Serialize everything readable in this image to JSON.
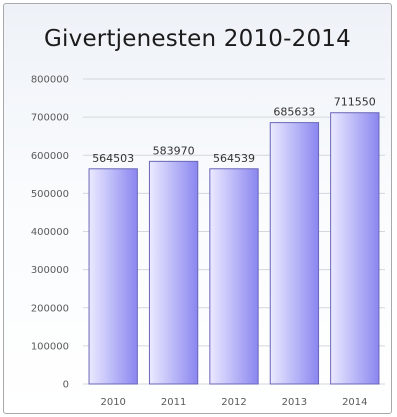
{
  "chart_data": {
    "type": "bar",
    "title": "Givertjenesten 2010-2014",
    "categories": [
      "2010",
      "2011",
      "2012",
      "2013",
      "2014"
    ],
    "values": [
      564503,
      583970,
      564539,
      685633,
      711550
    ],
    "data_labels": [
      "564503",
      "583970",
      "564539",
      "685633",
      "711550"
    ],
    "yticks": [
      0,
      100000,
      200000,
      300000,
      400000,
      500000,
      600000,
      700000,
      800000
    ],
    "ytick_labels": [
      "0",
      "100000",
      "200000",
      "300000",
      "400000",
      "500000",
      "600000",
      "700000",
      "800000"
    ],
    "ylim": [
      0,
      800000
    ],
    "xlabel": "",
    "ylabel": "",
    "grid": true,
    "legend": "none",
    "colors": {
      "bar_light": "#ebeaff",
      "bar_dark": "#8a86f0",
      "bar_border": "#6a67b8",
      "grid": "#d3d7de",
      "frame_border": "#a9a9a9"
    }
  }
}
